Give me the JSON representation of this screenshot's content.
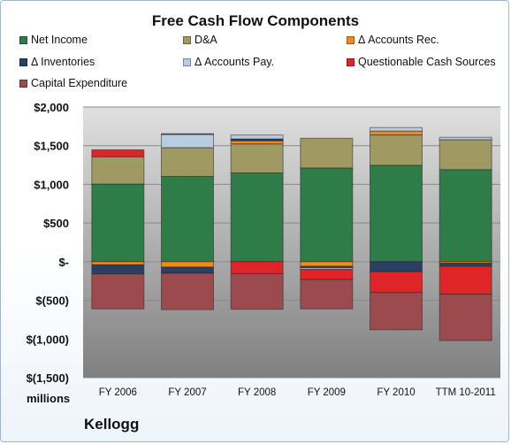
{
  "chart_data": {
    "type": "bar",
    "stacked": true,
    "title": "Free Cash Flow Components",
    "company": "Kellogg",
    "units": "millions",
    "categories": [
      "FY 2006",
      "FY 2007",
      "FY 2008",
      "FY 2009",
      "FY 2010",
      "TTM 10-2011"
    ],
    "y_ticks": [
      "$2,000",
      "$1,500",
      "$1,000",
      "$500",
      "$-",
      "$(500)",
      "$(1,000)",
      "$(1,500)"
    ],
    "ylim": [
      -1500,
      2000
    ],
    "grid": true,
    "legend_position": "top",
    "series": [
      {
        "name": "Net Income",
        "color": "#2e7d48",
        "values": [
          1004,
          1103,
          1148,
          1212,
          1247,
          1191
        ]
      },
      {
        "name": "D&A",
        "color": "#a09a62",
        "values": [
          353,
          372,
          375,
          384,
          392,
          387
        ]
      },
      {
        "name": "Δ Accounts Rec.",
        "color": "#f08a1c",
        "values": [
          -40,
          -70,
          40,
          -60,
          50,
          -20
        ]
      },
      {
        "name": "Δ Inventories",
        "color": "#2b3f63",
        "values": [
          -120,
          -80,
          25,
          -20,
          -130,
          -40
        ]
      },
      {
        "name": "Δ Accounts Pay.",
        "color": "#b8cde3",
        "values": [
          0,
          170,
          50,
          -20,
          45,
          30
        ]
      },
      {
        "name": "Questionable Cash Sources",
        "color": "#e02528",
        "values": [
          90,
          10,
          -155,
          -130,
          -270,
          -360
        ]
      },
      {
        "name": "Capital Expenditure",
        "color": "#9b4a4d",
        "values": [
          -450,
          -470,
          -460,
          -380,
          -480,
          -600
        ]
      }
    ]
  }
}
